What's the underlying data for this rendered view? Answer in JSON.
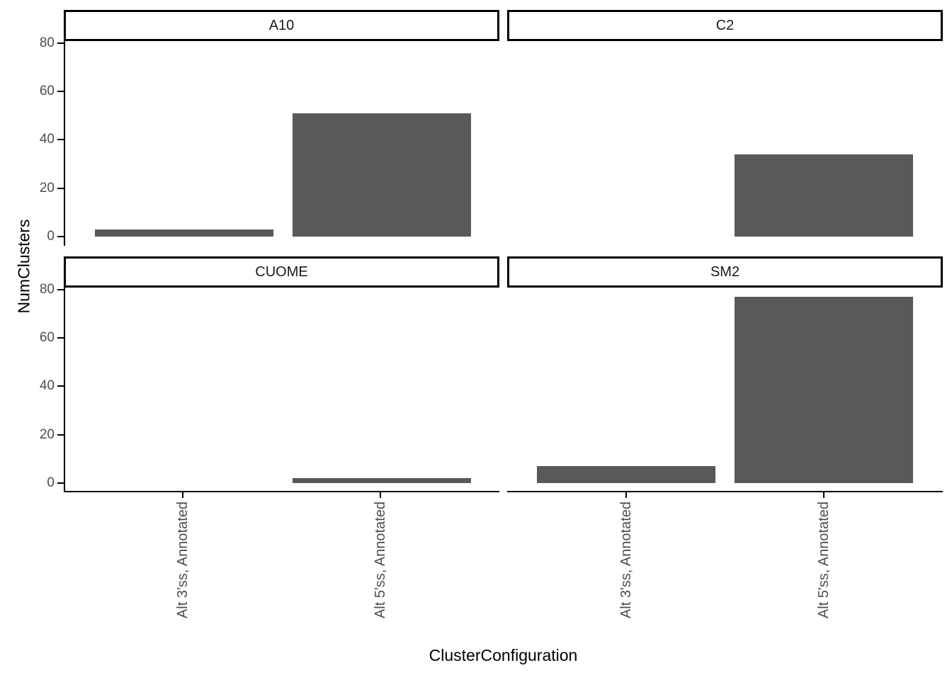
{
  "chart_data": {
    "type": "bar",
    "title": "",
    "xlabel": "ClusterConfiguration",
    "ylabel": "NumClusters",
    "categories": [
      "Alt 3'ss, Annotated",
      "Alt 5'ss, Annotated"
    ],
    "facets": [
      {
        "label": "A10",
        "values": [
          3,
          51
        ]
      },
      {
        "label": "C2",
        "values": [
          0,
          34
        ]
      },
      {
        "label": "CUOME",
        "values": [
          0,
          2
        ]
      },
      {
        "label": "SM2",
        "values": [
          7,
          77
        ]
      }
    ],
    "y_ticks": [
      0,
      20,
      40,
      60,
      80
    ],
    "ylim": [
      -3.85,
      80.85
    ],
    "grid": false,
    "legend": "none",
    "colors": {
      "bar": "#595959",
      "axis_text": "#4d4d4d",
      "axis_line": "#000000",
      "strip_border": "#000000",
      "background": "#ffffff"
    }
  }
}
